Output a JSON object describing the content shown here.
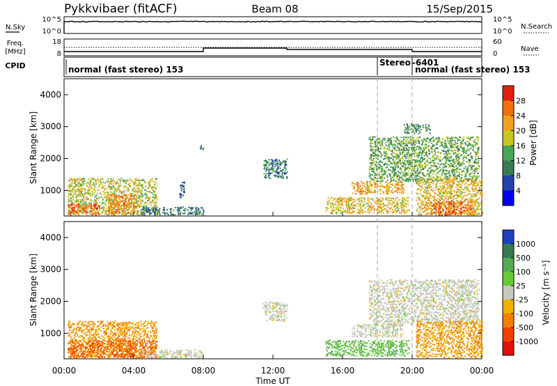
{
  "header": {
    "station": "Pykkvibaer (fitACF)",
    "beam": "Beam 08",
    "date": "15/Sep/2015"
  },
  "noise_panel": {
    "left_label": "N.Sky",
    "right_label": "N.Search",
    "left_ticks": [
      "10^5",
      "10^0"
    ],
    "right_ticks": [
      "10^5",
      "10^0"
    ]
  },
  "freq_panel": {
    "left_label": "Freq.",
    "left_unit": "[MHz]",
    "right_label": "Nave",
    "left_ticks": [
      "18",
      "8"
    ],
    "right_ticks": [
      "60",
      "0"
    ]
  },
  "cpid_panel": {
    "label": "CPID",
    "segments": [
      {
        "text": "normal (fast stereo) 153",
        "start_hour": 0
      },
      {
        "text": "Stereo",
        "start_hour": 18.0
      },
      {
        "text": "-6401",
        "start_hour": 20.0
      },
      {
        "text": "normal (fast stereo) 153",
        "start_hour": 20.0
      }
    ]
  },
  "x_axis": {
    "label": "Time UT",
    "ticks": [
      "00:00",
      "04:00",
      "08:00",
      "12:00",
      "16:00",
      "20:00",
      "00:00"
    ]
  },
  "power_colorbar": {
    "label": "Power [dB]",
    "ticks": [
      "4",
      "8",
      "12",
      "16",
      "20",
      "24",
      "28"
    ],
    "colors": [
      "#0000ee",
      "#2244aa",
      "#3a7a50",
      "#4aa55a",
      "#c8c820",
      "#f0a020",
      "#f07010",
      "#e02010"
    ]
  },
  "velocity_colorbar": {
    "label": "Velocity [m s⁻¹]",
    "ticks": [
      "1000",
      "500",
      "100",
      "25",
      "-25",
      "-100",
      "-500",
      "-1000"
    ],
    "colors": [
      "#2040c0",
      "#3a7a50",
      "#55aa55",
      "#66cc33",
      "#c8c8c0",
      "#f0b000",
      "#f08000",
      "#f04000",
      "#e01010"
    ]
  },
  "chart_data": {
    "type": "heatmap",
    "x_range_hours": [
      0,
      24
    ],
    "y_label": "Slant Range [km]",
    "y_ticks": [
      1000,
      2000,
      3000,
      4000
    ],
    "ylim": [
      200,
      4500
    ],
    "power_blobs": [
      {
        "t0": 0.2,
        "t1": 5.3,
        "r0": 250,
        "r1": 1400,
        "level": 18
      },
      {
        "t0": 0.2,
        "t1": 2.0,
        "r0": 250,
        "r1": 600,
        "level": 26
      },
      {
        "t0": 2.5,
        "t1": 4.2,
        "r0": 250,
        "r1": 900,
        "level": 24
      },
      {
        "t0": 4.4,
        "t1": 8.0,
        "r0": 250,
        "r1": 500,
        "level": 10
      },
      {
        "t0": 6.6,
        "t1": 6.9,
        "r0": 800,
        "r1": 1300,
        "level": 8
      },
      {
        "t0": 7.8,
        "t1": 8.0,
        "r0": 2300,
        "r1": 2500,
        "level": 8
      },
      {
        "t0": 11.4,
        "t1": 12.8,
        "r0": 1400,
        "r1": 2000,
        "level": 10
      },
      {
        "t0": 15.0,
        "t1": 19.8,
        "r0": 300,
        "r1": 800,
        "level": 20
      },
      {
        "t0": 16.5,
        "t1": 19.5,
        "r0": 900,
        "r1": 1300,
        "level": 22
      },
      {
        "t0": 17.5,
        "t1": 23.8,
        "r0": 1300,
        "r1": 2700,
        "level": 14
      },
      {
        "t0": 19.5,
        "t1": 21.0,
        "r0": 2800,
        "r1": 3100,
        "level": 12
      },
      {
        "t0": 20.2,
        "t1": 24.0,
        "r0": 250,
        "r1": 1400,
        "level": 20
      },
      {
        "t0": 21.0,
        "t1": 23.5,
        "r0": 250,
        "r1": 700,
        "level": 26
      }
    ],
    "velocity_blobs": [
      {
        "t0": 0.2,
        "t1": 5.3,
        "r0": 250,
        "r1": 1400,
        "level": -100
      },
      {
        "t0": 0.2,
        "t1": 5.3,
        "r0": 250,
        "r1": 800,
        "level": -500
      },
      {
        "t0": 4.4,
        "t1": 8.0,
        "r0": 250,
        "r1": 500,
        "level": 0
      },
      {
        "t0": 11.4,
        "t1": 12.8,
        "r0": 1400,
        "r1": 2000,
        "level": 0
      },
      {
        "t0": 15.0,
        "t1": 19.8,
        "r0": 300,
        "r1": 800,
        "level": 100
      },
      {
        "t0": 16.5,
        "t1": 19.5,
        "r0": 900,
        "r1": 1300,
        "level": 0
      },
      {
        "t0": 17.5,
        "t1": 23.8,
        "r0": 1300,
        "r1": 2700,
        "level": 0
      },
      {
        "t0": 20.2,
        "t1": 24.0,
        "r0": 250,
        "r1": 1400,
        "level": -100
      }
    ]
  }
}
